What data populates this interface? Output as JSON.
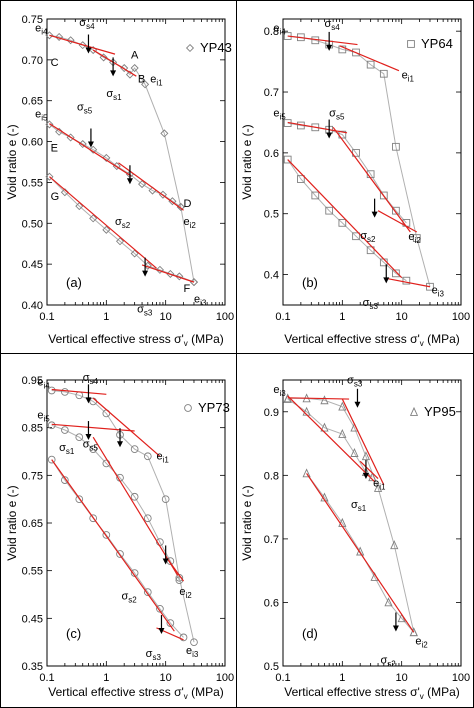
{
  "colors": {
    "data_line": "#b0b0b0",
    "marker": "#808080",
    "fit": "#e0201c",
    "frame": "#000000"
  },
  "chart_data": [
    {
      "type": "scatter",
      "panel_label": "(a)",
      "legend": "YP43",
      "marker": "diamond",
      "xlabel": "Vertical effective stress σ'v (MPa)",
      "ylabel": "Void ratio e (-)",
      "xscale": "log",
      "xlim": [
        0.1,
        100
      ],
      "ylim": [
        0.4,
        0.75
      ],
      "xticks": [
        "0.1",
        "1",
        "10",
        "100"
      ],
      "yticks": [
        "0.40",
        "0.45",
        "0.50",
        "0.55",
        "0.60",
        "0.65",
        "0.70",
        "0.75"
      ],
      "series": [
        {
          "x": [
            0.11,
            0.16,
            0.25,
            0.4,
            0.6,
            0.9,
            1.3,
            2.0,
            2.5,
            3.0,
            4.5,
            9.5,
            18,
            30
          ],
          "y": [
            0.73,
            0.728,
            0.724,
            0.718,
            0.712,
            0.703,
            0.697,
            0.69,
            0.682,
            0.69,
            0.67,
            0.61,
            0.52,
            0.428
          ]
        },
        {
          "x": [
            0.11,
            0.16,
            0.25,
            0.4,
            0.6,
            1.0,
            1.5,
            2.5,
            4.0,
            6.0,
            9.0,
            13,
            18
          ],
          "y": [
            0.621,
            0.612,
            0.605,
            0.597,
            0.59,
            0.58,
            0.57,
            0.56,
            0.548,
            0.54,
            0.535,
            0.527,
            0.52
          ]
        },
        {
          "x": [
            0.11,
            0.2,
            0.35,
            0.6,
            1.0,
            1.7,
            3.0,
            5.0,
            8.0,
            12,
            17,
            30
          ],
          "y": [
            0.557,
            0.538,
            0.521,
            0.506,
            0.492,
            0.478,
            0.463,
            0.448,
            0.443,
            0.438,
            0.435,
            0.428
          ]
        }
      ],
      "annotations": [
        {
          "text": "e",
          "sub": "i4"
        },
        {
          "text": "σ",
          "sub": "s4"
        },
        {
          "text": "C"
        },
        {
          "text": "A"
        },
        {
          "text": "B"
        },
        {
          "text": "e",
          "sub": "i1"
        },
        {
          "text": "σ",
          "sub": "s1"
        },
        {
          "text": "e",
          "sub": "i5"
        },
        {
          "text": "σ",
          "sub": "s5"
        },
        {
          "text": "E"
        },
        {
          "text": "σ",
          "sub": "s2"
        },
        {
          "text": "D"
        },
        {
          "text": "e",
          "sub": "i2"
        },
        {
          "text": "G"
        },
        {
          "text": "σ",
          "sub": "s3"
        },
        {
          "text": "F"
        },
        {
          "text": "e",
          "sub": "i3"
        }
      ]
    },
    {
      "type": "scatter",
      "panel_label": "(b)",
      "legend": "YP64",
      "marker": "square",
      "xlabel": "Vertical effective stress σ'v (MPa)",
      "ylabel": "Void ratio e (-)",
      "xscale": "log",
      "xlim": [
        0.1,
        100
      ],
      "ylim": [
        0.35,
        0.82
      ],
      "xticks": [
        "0.1",
        "1",
        "10",
        "100"
      ],
      "yticks": [
        "0.4",
        "0.5",
        "0.6",
        "0.7",
        "0.8"
      ],
      "series": [
        {
          "x": [
            0.12,
            0.2,
            0.35,
            0.6,
            1.0,
            1.7,
            3.0,
            5.0,
            8.0,
            18,
            30
          ],
          "y": [
            0.792,
            0.79,
            0.785,
            0.778,
            0.77,
            0.765,
            0.745,
            0.73,
            0.61,
            0.46,
            0.38
          ]
        },
        {
          "x": [
            0.12,
            0.2,
            0.35,
            0.6,
            1.0,
            1.7,
            3.0,
            5.0,
            8.0,
            12
          ],
          "y": [
            0.649,
            0.645,
            0.642,
            0.638,
            0.63,
            0.6,
            0.565,
            0.53,
            0.505,
            0.485
          ]
        },
        {
          "x": [
            0.12,
            0.2,
            0.35,
            0.6,
            1.0,
            1.7,
            3.0,
            5.0,
            8.0,
            12
          ],
          "y": [
            0.589,
            0.557,
            0.53,
            0.505,
            0.485,
            0.463,
            0.44,
            0.42,
            0.402,
            0.39
          ]
        }
      ],
      "annotations": [
        {
          "text": "e",
          "sub": "i4"
        },
        {
          "text": "σ",
          "sub": "s4"
        },
        {
          "text": "e",
          "sub": "i1"
        },
        {
          "text": "e",
          "sub": "i5"
        },
        {
          "text": "σ",
          "sub": "s5"
        },
        {
          "text": "σ",
          "sub": "s2"
        },
        {
          "text": "e",
          "sub": "i2"
        },
        {
          "text": "σ",
          "sub": "s3"
        },
        {
          "text": "e",
          "sub": "i3"
        }
      ]
    },
    {
      "type": "scatter",
      "panel_label": "(c)",
      "legend": "YP73",
      "marker": "circle",
      "xlabel": "Vertical effective stress σ'v (MPa)",
      "ylabel": "Void ratio e (-)",
      "xscale": "log",
      "xlim": [
        0.1,
        100
      ],
      "ylim": [
        0.35,
        0.95
      ],
      "xticks": [
        "0.1",
        "1",
        "10",
        "100"
      ],
      "yticks": [
        "0.35",
        "0.45",
        "0.55",
        "0.65",
        "0.75",
        "0.85",
        "0.95"
      ],
      "series": [
        {
          "x": [
            0.12,
            0.2,
            0.35,
            0.6,
            1.0,
            1.7,
            3.0,
            5.0,
            10,
            17,
            30
          ],
          "y": [
            0.928,
            0.925,
            0.918,
            0.905,
            0.88,
            0.835,
            0.805,
            0.79,
            0.7,
            0.535,
            0.4
          ]
        },
        {
          "x": [
            0.12,
            0.2,
            0.35,
            0.6,
            1.0,
            1.7,
            3.0,
            5.0,
            8.0,
            12,
            17
          ],
          "y": [
            0.855,
            0.845,
            0.83,
            0.805,
            0.775,
            0.745,
            0.705,
            0.66,
            0.61,
            0.57,
            0.53
          ]
        },
        {
          "x": [
            0.12,
            0.2,
            0.35,
            0.6,
            1.0,
            1.7,
            3.0,
            5.0,
            8.0,
            12,
            20
          ],
          "y": [
            0.783,
            0.74,
            0.7,
            0.66,
            0.625,
            0.585,
            0.545,
            0.505,
            0.47,
            0.44,
            0.41
          ]
        }
      ],
      "annotations": [
        {
          "text": "e",
          "sub": "i4"
        },
        {
          "text": "σ",
          "sub": "s4"
        },
        {
          "text": "e",
          "sub": "i5"
        },
        {
          "text": "σ",
          "sub": "s5"
        },
        {
          "text": "σ",
          "sub": "s1"
        },
        {
          "text": "e",
          "sub": "i1"
        },
        {
          "text": "σ",
          "sub": "s2"
        },
        {
          "text": "e",
          "sub": "i2"
        },
        {
          "text": "σ",
          "sub": "s3"
        },
        {
          "text": "e",
          "sub": "i3"
        }
      ]
    },
    {
      "type": "scatter",
      "panel_label": "(d)",
      "legend": "YP95",
      "marker": "triangle",
      "xlabel": "Vertical effective stress σ'v (MPa)",
      "ylabel": "Void ratio e (-)",
      "xscale": "log",
      "xlim": [
        0.1,
        100
      ],
      "ylim": [
        0.5,
        0.95
      ],
      "xticks": [
        "0.1",
        "1",
        "10",
        "100"
      ],
      "yticks": [
        "0.5",
        "0.6",
        "0.7",
        "0.8",
        "0.9"
      ],
      "series": [
        {
          "x": [
            0.12,
            0.25,
            0.5,
            1.0,
            1.6,
            2.5,
            4.0,
            7.5,
            16
          ],
          "y": [
            0.921,
            0.921,
            0.918,
            0.908,
            0.875,
            0.83,
            0.78,
            0.69,
            0.553
          ]
        },
        {
          "x": [
            0.12,
            0.25,
            0.5,
            1.0,
            1.6,
            2.5,
            3.2
          ],
          "y": [
            0.92,
            0.9,
            0.875,
            0.865,
            0.835,
            0.805,
            0.797
          ]
        },
        {
          "x": [
            0.25,
            0.5,
            1.0,
            2.0,
            3.5,
            6.0,
            10,
            16
          ],
          "y": [
            0.803,
            0.765,
            0.725,
            0.68,
            0.64,
            0.6,
            0.575,
            0.553
          ]
        }
      ],
      "annotations": [
        {
          "text": "e",
          "sub": "i3"
        },
        {
          "text": "σ",
          "sub": "s3"
        },
        {
          "text": "e",
          "sub": "i1"
        },
        {
          "text": "σ",
          "sub": "s1"
        },
        {
          "text": "σ",
          "sub": "s2"
        },
        {
          "text": "e",
          "sub": "i2"
        }
      ]
    }
  ]
}
